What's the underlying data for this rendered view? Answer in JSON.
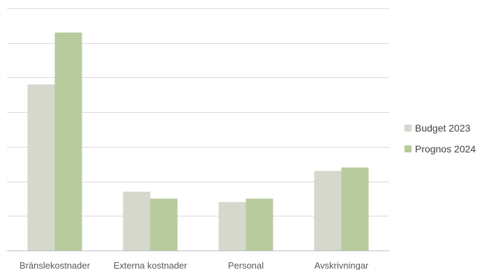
{
  "chart_data": {
    "type": "bar",
    "categories": [
      "Bränslekostnader",
      "Externa kostnader",
      "Personal",
      "Avskrivningar"
    ],
    "series": [
      {
        "name": "Budget 2023",
        "values": [
          4.8,
          1.7,
          1.4,
          2.3
        ],
        "color": "#d6d7cd"
      },
      {
        "name": "Prognos 2024",
        "values": [
          6.3,
          1.5,
          1.5,
          2.4
        ],
        "color": "#b7cb9c"
      }
    ],
    "ylim": [
      0,
      7
    ],
    "grid": true,
    "legend_position": "right",
    "title": "",
    "xlabel": "",
    "ylabel": ""
  }
}
